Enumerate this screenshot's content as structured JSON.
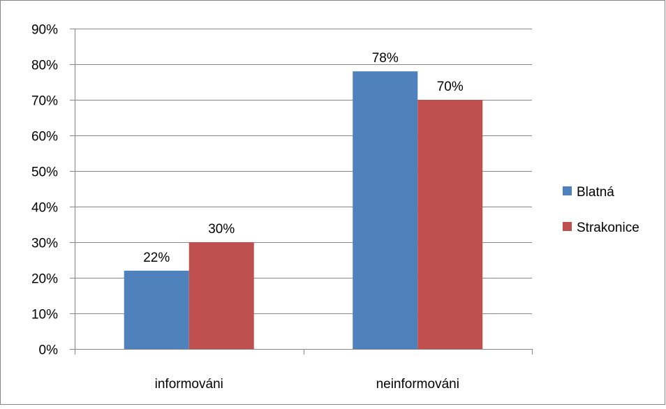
{
  "chart_data": {
    "type": "bar",
    "title": "",
    "xlabel": "",
    "ylabel": "",
    "categories": [
      "informováni",
      "neinformováni"
    ],
    "series": [
      {
        "name": "Blatná",
        "values": [
          22,
          78
        ],
        "color": "#4F81BD"
      },
      {
        "name": "Strakonice",
        "values": [
          30,
          70
        ],
        "color": "#C0504D"
      }
    ],
    "value_suffix": "%",
    "ylim": [
      0,
      90
    ],
    "yticks": [
      0,
      10,
      20,
      30,
      40,
      50,
      60,
      70,
      80,
      90
    ],
    "ytick_labels": [
      "0%",
      "10%",
      "20%",
      "30%",
      "40%",
      "50%",
      "60%",
      "70%",
      "80%",
      "90%"
    ],
    "data_labels": [
      [
        "22%",
        "78%"
      ],
      [
        "30%",
        "70%"
      ]
    ],
    "grid": true,
    "legend": "right"
  }
}
